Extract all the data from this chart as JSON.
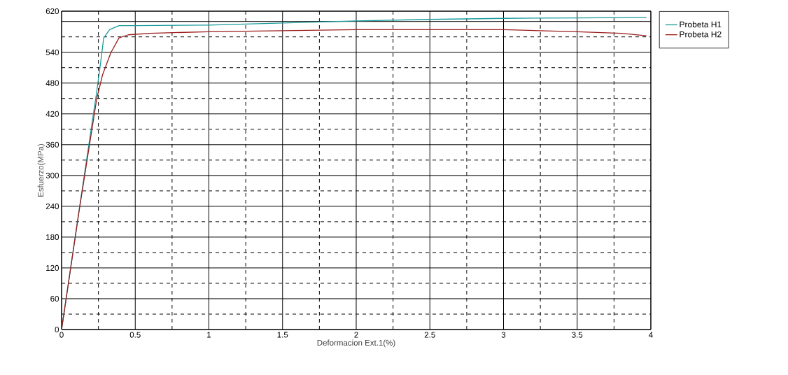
{
  "chart_data": {
    "type": "line",
    "xlabel": "Deformacion Ext.1(%)",
    "ylabel": "Esfuerzo(MPa)",
    "xlim": [
      0,
      4
    ],
    "ylim": [
      0,
      620
    ],
    "xticks": [
      0,
      0.5,
      1,
      1.5,
      2,
      2.5,
      3,
      3.5,
      4
    ],
    "yticks": [
      0,
      60,
      120,
      180,
      240,
      300,
      360,
      420,
      480,
      540,
      {
        "value": 600,
        "label": null
      },
      620
    ],
    "grid": true,
    "legend": "right",
    "marker": "none",
    "line_style": "solid",
    "series": [
      {
        "name": "Probeta H1",
        "color": "#1a9a9a",
        "x": [
          0,
          0.112,
          0.239,
          0.265,
          0.286,
          0.326,
          0.39,
          0.5,
          1.0,
          1.5,
          2.0,
          2.5,
          3.0,
          3.5,
          3.97
        ],
        "values": [
          0,
          219,
          464,
          520,
          568,
          584,
          592,
          592,
          593,
          597,
          601,
          604,
          606,
          607,
          608
        ]
      },
      {
        "name": "Probeta H2",
        "color": "#9b1c1c",
        "x": [
          0,
          0.12,
          0.239,
          0.278,
          0.334,
          0.39,
          0.453,
          0.6,
          1.0,
          1.5,
          2.0,
          2.5,
          3.0,
          3.5,
          3.8,
          3.97
        ],
        "values": [
          0,
          233,
          450,
          496,
          539,
          568,
          574,
          577,
          580,
          582,
          584,
          584,
          584,
          580,
          577,
          572
        ]
      }
    ]
  }
}
